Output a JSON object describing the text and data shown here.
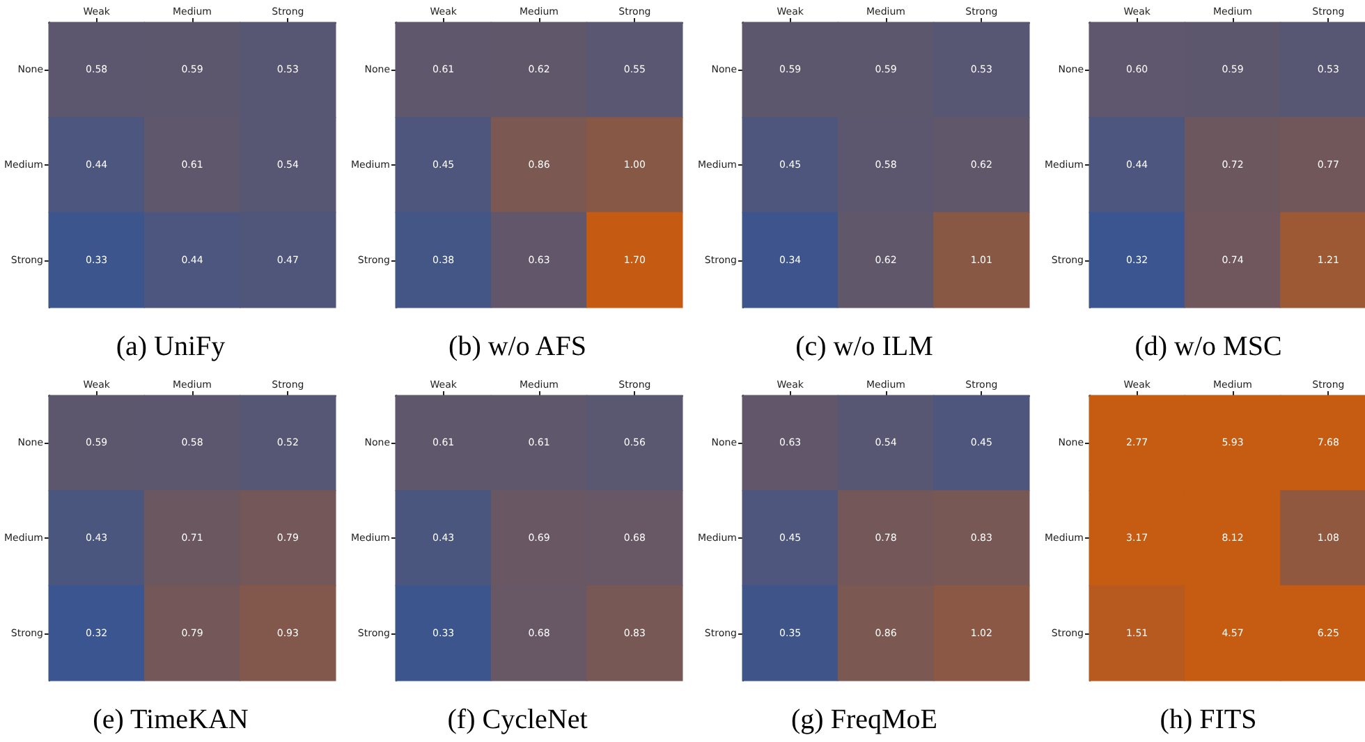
{
  "chart_data": [
    {
      "type": "heatmap",
      "title": "(a) UniFy",
      "categories": [
        "Weak",
        "Medium",
        "Strong"
      ],
      "y_categories": [
        "None",
        "Medium",
        "Strong"
      ],
      "cells": [
        [
          0.58,
          0.59,
          0.53
        ],
        [
          0.44,
          0.61,
          0.54
        ],
        [
          0.33,
          0.44,
          0.47
        ]
      ],
      "data_labels": true
    },
    {
      "type": "heatmap",
      "title": "(b) w/o AFS",
      "categories": [
        "Weak",
        "Medium",
        "Strong"
      ],
      "y_categories": [
        "None",
        "Medium",
        "Strong"
      ],
      "cells": [
        [
          0.61,
          0.62,
          0.55
        ],
        [
          0.45,
          0.86,
          1.0
        ],
        [
          0.38,
          0.63,
          1.7
        ]
      ],
      "cell_labels": [
        [
          "0.61",
          "0.62",
          "0.55"
        ],
        [
          "0.45",
          "0.86",
          "1.00"
        ],
        [
          "0.38",
          "0.63",
          "1.70"
        ]
      ],
      "data_labels": true
    },
    {
      "type": "heatmap",
      "title": "(c) w/o ILM",
      "categories": [
        "Weak",
        "Medium",
        "Strong"
      ],
      "y_categories": [
        "None",
        "Medium",
        "Strong"
      ],
      "cells": [
        [
          0.59,
          0.59,
          0.53
        ],
        [
          0.45,
          0.58,
          0.62
        ],
        [
          0.34,
          0.62,
          1.01
        ]
      ],
      "data_labels": true
    },
    {
      "type": "heatmap",
      "title": "(d) w/o MSC",
      "categories": [
        "Weak",
        "Medium",
        "Strong"
      ],
      "y_categories": [
        "None",
        "Medium",
        "Strong"
      ],
      "cells": [
        [
          0.6,
          0.59,
          0.53
        ],
        [
          0.44,
          0.72,
          0.77
        ],
        [
          0.32,
          0.74,
          1.21
        ]
      ],
      "cell_labels": [
        [
          "0.60",
          "0.59",
          "0.53"
        ],
        [
          "0.44",
          "0.72",
          "0.77"
        ],
        [
          "0.32",
          "0.74",
          "1.21"
        ]
      ],
      "data_labels": true
    },
    {
      "type": "heatmap",
      "title": "(e) TimeKAN",
      "categories": [
        "Weak",
        "Medium",
        "Strong"
      ],
      "y_categories": [
        "None",
        "Medium",
        "Strong"
      ],
      "cells": [
        [
          0.59,
          0.58,
          0.52
        ],
        [
          0.43,
          0.71,
          0.79
        ],
        [
          0.32,
          0.79,
          0.93
        ]
      ],
      "data_labels": true
    },
    {
      "type": "heatmap",
      "title": "(f) CycleNet",
      "categories": [
        "Weak",
        "Medium",
        "Strong"
      ],
      "y_categories": [
        "None",
        "Medium",
        "Strong"
      ],
      "cells": [
        [
          0.61,
          0.61,
          0.56
        ],
        [
          0.43,
          0.69,
          0.68
        ],
        [
          0.33,
          0.68,
          0.83
        ]
      ],
      "data_labels": true
    },
    {
      "type": "heatmap",
      "title": "(g) FreqMoE",
      "categories": [
        "Weak",
        "Medium",
        "Strong"
      ],
      "y_categories": [
        "None",
        "Medium",
        "Strong"
      ],
      "cells": [
        [
          0.63,
          0.54,
          0.45
        ],
        [
          0.45,
          0.78,
          0.83
        ],
        [
          0.35,
          0.86,
          1.02
        ]
      ],
      "data_labels": true
    },
    {
      "type": "heatmap",
      "title": "(h) FITS",
      "categories": [
        "Weak",
        "Medium",
        "Strong"
      ],
      "y_categories": [
        "None",
        "Medium",
        "Strong"
      ],
      "cells": [
        [
          2.77,
          5.93,
          7.68
        ],
        [
          3.17,
          8.12,
          1.08
        ],
        [
          1.51,
          4.57,
          6.25
        ]
      ],
      "data_labels": true
    }
  ]
}
